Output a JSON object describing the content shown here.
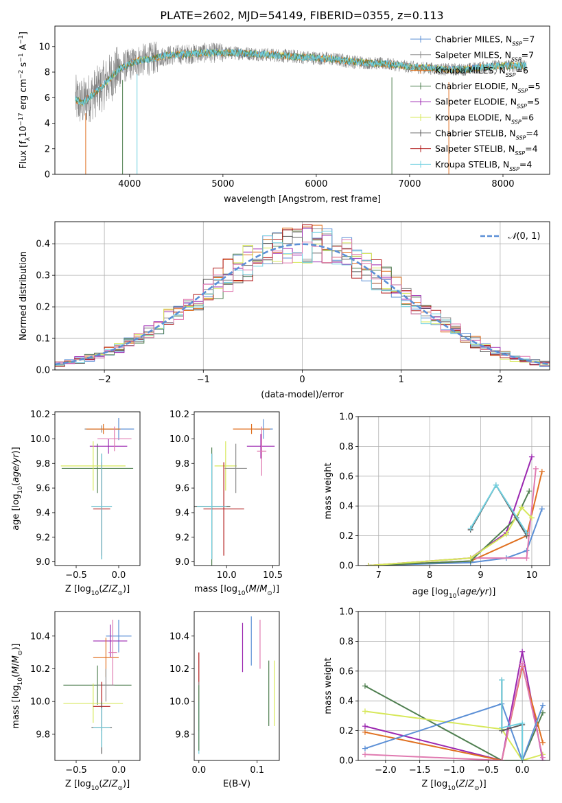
{
  "figure_title": "PLATE=2602, MJD=54149, FIBERID=0355, z=0.113",
  "colors": {
    "chabrier_miles": "#5b8fd6",
    "salpeter_miles": "#8c8c8c",
    "kroupa_miles": "#e07020",
    "chabrier_elodie": "#4f7f50",
    "salpeter_elodie": "#9b27b0",
    "kroupa_elodie": "#d7e85a",
    "chabrier_stelib": "#5a5a5a",
    "salpeter_stelib": "#b01818",
    "kroupa_stelib": "#70d0e0",
    "pink": "#e07ab0",
    "normal": "#5b8fd6"
  },
  "legend_spectrum": [
    {
      "name": "Chabrier MILES, N_SSP=7",
      "color": "#5b8fd6"
    },
    {
      "name": "Salpeter MILES, N_SSP=7",
      "color": "#8c8c8c"
    },
    {
      "name": "Kroupa MILES, N_SSP=6",
      "color": "#e07020"
    },
    {
      "name": "Chabrier ELODIE, N_SSP=5",
      "color": "#4f7f50"
    },
    {
      "name": "Salpeter ELODIE, N_SSP=5",
      "color": "#9b27b0"
    },
    {
      "name": "Kroupa ELODIE, N_SSP=6",
      "color": "#d7e85a"
    },
    {
      "name": "Chabrier STELIB, N_SSP=4",
      "color": "#5a5a5a"
    },
    {
      "name": "Salpeter STELIB, N_SSP=4",
      "color": "#b01818"
    },
    {
      "name": "Kroupa STELIB, N_SSP=4",
      "color": "#70d0e0"
    }
  ],
  "chart_data": [
    {
      "id": "spectrum",
      "type": "line",
      "xlabel": "wavelength [Angstrom, rest frame]",
      "ylabel": "Flux [f_λ 10^-17 erg cm^-2 s^-1 A^-1]",
      "xlim": [
        3200,
        8500
      ],
      "ylim": [
        0,
        11.6
      ],
      "xticks": [
        4000,
        5000,
        6000,
        7000,
        8000
      ],
      "yticks": [
        0,
        2,
        4,
        6,
        8,
        10
      ],
      "grid": false,
      "legend": "top-right",
      "continuum": {
        "x": [
          3400,
          3500,
          3600,
          3700,
          3800,
          3900,
          4000,
          4100,
          4200,
          4400,
          4600,
          4800,
          5000,
          5200,
          5400,
          5600,
          5800,
          6000,
          6200,
          6400,
          6600,
          6800,
          7000,
          7200,
          7400,
          7600,
          7800,
          8000,
          8250
        ],
        "y": [
          5.9,
          5.6,
          6.2,
          6.8,
          7.6,
          8.3,
          8.6,
          8.9,
          9.0,
          9.3,
          9.4,
          9.5,
          9.5,
          9.5,
          9.4,
          9.3,
          9.2,
          9.1,
          9.0,
          8.8,
          8.7,
          8.6,
          8.4,
          8.3,
          8.2,
          8.2,
          8.4,
          8.5,
          8.5
        ]
      }
    },
    {
      "id": "residuals",
      "type": "area",
      "xlabel": "(data-model)/error",
      "ylabel": "Normed distribution",
      "xlim": [
        -2.5,
        2.5
      ],
      "ylim": [
        0,
        0.47
      ],
      "xticks": [
        -2,
        -1,
        0,
        1,
        2
      ],
      "yticks": [
        0.0,
        0.1,
        0.2,
        0.3,
        0.4
      ],
      "grid": true,
      "legend": "top-right",
      "legend_label": "N(0,1)",
      "bin_width": 0.1
    },
    {
      "id": "age_vs_Z",
      "type": "scatter",
      "xlabel": "Z [log10(Z/Z☉)]",
      "ylabel": "age [log10(age/yr)]",
      "xlim": [
        -0.75,
        0.25
      ],
      "ylim": [
        8.97,
        10.22
      ],
      "xticks": [
        -0.5,
        0.0
      ],
      "yticks": [
        9.0,
        9.2,
        9.4,
        9.6,
        9.8,
        10.0,
        10.2
      ],
      "points": [
        {
          "color": "#5b8fd6",
          "x": 0.0,
          "y": 10.08,
          "xerr": 0.18,
          "yerr": 0.09
        },
        {
          "color": "#8c8c8c",
          "x": -0.2,
          "y": 10.08,
          "xerr": 0.2,
          "yerr": 0.03
        },
        {
          "color": "#e07020",
          "x": -0.18,
          "y": 10.08,
          "xerr": 0.2,
          "yerr": 0.04
        },
        {
          "color": "#4f7f50",
          "x": -0.25,
          "y": 9.76,
          "xerr": 0.42,
          "yerr": 0.2
        },
        {
          "color": "#9b27b0",
          "x": -0.12,
          "y": 9.94,
          "xerr": 0.22,
          "yerr": 0.06
        },
        {
          "color": "#d7e85a",
          "x": -0.3,
          "y": 9.78,
          "xerr": 0.38,
          "yerr": 0.2
        },
        {
          "color": "#5a5a5a",
          "x": -0.2,
          "y": 9.45,
          "xerr": 0.12,
          "yerr": 0.43
        },
        {
          "color": "#b01818",
          "x": -0.2,
          "y": 9.43,
          "xerr": 0.1,
          "yerr": 0.38
        },
        {
          "color": "#70d0e0",
          "x": -0.2,
          "y": 9.45,
          "xerr": 0.12,
          "yerr": 0.43
        },
        {
          "color": "#e07ab0",
          "x": -0.05,
          "y": 10.0,
          "xerr": 0.2,
          "yerr": 0.1
        }
      ]
    },
    {
      "id": "age_vs_mass",
      "type": "scatter",
      "xlabel": "mass [log10(M/M☉)]",
      "ylabel": "",
      "xlim": [
        9.65,
        10.57
      ],
      "ylim": [
        8.97,
        10.22
      ],
      "xticks": [
        10.0,
        10.5
      ],
      "yticks": [
        9.0,
        9.2,
        9.4,
        9.6,
        9.8,
        10.0,
        10.2
      ],
      "points": [
        {
          "color": "#5b8fd6",
          "x": 10.4,
          "y": 10.08,
          "xerr": 0.1,
          "yerr": 0.08
        },
        {
          "color": "#e07020",
          "x": 10.27,
          "y": 10.08,
          "xerr": 0.2,
          "yerr": 0.04
        },
        {
          "color": "#9b27b0",
          "x": 10.37,
          "y": 9.94,
          "xerr": 0.15,
          "yerr": 0.1
        },
        {
          "color": "#e07ab0",
          "x": 10.38,
          "y": 9.9,
          "xerr": 0.05,
          "yerr": 0.2
        },
        {
          "color": "#4f7f50",
          "x": 9.84,
          "y": 9.45,
          "xerr": 0.2,
          "yerr": 0.48
        },
        {
          "color": "#d7e85a",
          "x": 9.99,
          "y": 9.78,
          "xerr": 0.12,
          "yerr": 0.2
        },
        {
          "color": "#5a5a5a",
          "x": 9.84,
          "y": 9.45,
          "xerr": 0.2,
          "yerr": 0.43
        },
        {
          "color": "#b01818",
          "x": 9.97,
          "y": 9.43,
          "xerr": 0.22,
          "yerr": 0.38
        },
        {
          "color": "#70d0e0",
          "x": 9.84,
          "y": 9.45,
          "xerr": 0.16,
          "yerr": 0.43
        },
        {
          "color": "#8c8c8c",
          "x": 10.1,
          "y": 9.76,
          "xerr": 0.12,
          "yerr": 0.2
        }
      ]
    },
    {
      "id": "massweight_vs_age",
      "type": "line",
      "xlabel": "age [log10(age/yr)]",
      "ylabel": "mass weight",
      "xlim": [
        6.6,
        10.35
      ],
      "ylim": [
        0,
        1.0
      ],
      "xticks": [
        7,
        8,
        9,
        10
      ],
      "yticks": [
        0.0,
        0.2,
        0.4,
        0.6,
        0.8,
        1.0
      ],
      "grid": true,
      "series": [
        {
          "color": "#5b8fd6",
          "x": [
            6.8,
            8.8,
            9.5,
            9.9,
            10.2
          ],
          "y": [
            0.0,
            0.02,
            0.05,
            0.1,
            0.38
          ]
        },
        {
          "color": "#9b27b0",
          "x": [
            6.8,
            8.8,
            9.5,
            10.0
          ],
          "y": [
            0.0,
            0.05,
            0.22,
            0.73
          ]
        },
        {
          "color": "#e07020",
          "x": [
            6.8,
            8.8,
            9.9,
            10.2
          ],
          "y": [
            0.0,
            0.03,
            0.2,
            0.63
          ]
        },
        {
          "color": "#e07ab0",
          "x": [
            6.8,
            8.8,
            9.9,
            10.08
          ],
          "y": [
            0.0,
            0.05,
            0.05,
            0.65
          ]
        },
        {
          "color": "#4f7f50",
          "x": [
            6.8,
            8.8,
            9.7,
            9.95
          ],
          "y": [
            0.0,
            0.03,
            0.32,
            0.5
          ]
        },
        {
          "color": "#d7e85a",
          "x": [
            6.8,
            8.8,
            9.5,
            9.8,
            10.0
          ],
          "y": [
            0.0,
            0.05,
            0.21,
            0.39,
            0.32
          ]
        },
        {
          "color": "#5a5a5a",
          "x": [
            8.8,
            9.3,
            9.9
          ],
          "y": [
            0.24,
            0.54,
            0.2
          ]
        },
        {
          "color": "#70d0e0",
          "x": [
            8.8,
            9.3,
            9.9
          ],
          "y": [
            0.25,
            0.54,
            0.22
          ]
        }
      ]
    },
    {
      "id": "mass_vs_Z",
      "type": "scatter",
      "xlabel": "Z [log10(Z/Z☉)]",
      "ylabel": "mass [log10(M/M☉)]",
      "xlim": [
        -0.75,
        0.25
      ],
      "ylim": [
        9.64,
        10.55
      ],
      "xticks": [
        -0.5,
        0.0
      ],
      "yticks": [
        9.8,
        10.0,
        10.2,
        10.4
      ],
      "points": [
        {
          "color": "#5b8fd6",
          "x": 0.0,
          "y": 10.4,
          "xerr": 0.15,
          "yerr": 0.1
        },
        {
          "color": "#9b27b0",
          "x": -0.1,
          "y": 10.37,
          "xerr": 0.2,
          "yerr": 0.1
        },
        {
          "color": "#e07020",
          "x": -0.15,
          "y": 10.27,
          "xerr": 0.15,
          "yerr": 0.12
        },
        {
          "color": "#e07ab0",
          "x": -0.07,
          "y": 10.3,
          "xerr": 0.05,
          "yerr": 0.2
        },
        {
          "color": "#4f7f50",
          "x": -0.25,
          "y": 10.1,
          "xerr": 0.4,
          "yerr": 0.12
        },
        {
          "color": "#d7e85a",
          "x": -0.3,
          "y": 9.99,
          "xerr": 0.35,
          "yerr": 0.12
        },
        {
          "color": "#8c8c8c",
          "x": -0.15,
          "y": 10.1,
          "xerr": 0.1,
          "yerr": 0.1
        },
        {
          "color": "#b01818",
          "x": -0.2,
          "y": 9.97,
          "xerr": 0.1,
          "yerr": 0.15
        },
        {
          "color": "#5a5a5a",
          "x": -0.2,
          "y": 9.84,
          "xerr": 0.12,
          "yerr": 0.16
        },
        {
          "color": "#70d0e0",
          "x": -0.2,
          "y": 9.84,
          "xerr": 0.1,
          "yerr": 0.12
        }
      ]
    },
    {
      "id": "mass_vs_ebv",
      "type": "scatter",
      "xlabel": "E(B-V)",
      "ylabel": "",
      "xlim": [
        -0.008,
        0.138
      ],
      "ylim": [
        9.64,
        10.55
      ],
      "xticks": [
        0.0,
        0.1
      ],
      "yticks": [
        9.8,
        10.0,
        10.2,
        10.4
      ],
      "points": [
        {
          "color": "#b01818",
          "x": 0.0,
          "y": 10.2,
          "yerr": 0.1
        },
        {
          "color": "#8c8c8c",
          "x": 0.0,
          "y": 9.97,
          "yerr": 0.15
        },
        {
          "color": "#70d0e0",
          "x": 0.0,
          "y": 9.84,
          "yerr": 0.16
        },
        {
          "color": "#4f7f50",
          "x": 0.0,
          "y": 9.9,
          "yerr": 0.2
        },
        {
          "color": "#9b27b0",
          "x": 0.075,
          "y": 10.33,
          "yerr": 0.15
        },
        {
          "color": "#5b8fd6",
          "x": 0.09,
          "y": 10.37,
          "yerr": 0.15
        },
        {
          "color": "#e07ab0",
          "x": 0.105,
          "y": 10.35,
          "yerr": 0.15
        },
        {
          "color": "#4f7f50",
          "x": 0.12,
          "y": 10.05,
          "yerr": 0.2
        },
        {
          "color": "#d7e85a",
          "x": 0.13,
          "y": 10.05,
          "yerr": 0.2
        }
      ]
    },
    {
      "id": "massweight_vs_Z",
      "type": "line",
      "xlabel": "Z [log10(Z/Z☉)]",
      "ylabel": "mass weight",
      "xlim": [
        -2.4,
        0.4
      ],
      "ylim": [
        0,
        1.0
      ],
      "xticks": [
        -2.0,
        -1.5,
        -1.0,
        -0.5,
        0.0
      ],
      "yticks": [
        0.0,
        0.2,
        0.4,
        0.6,
        0.8,
        1.0
      ],
      "grid": true,
      "series": [
        {
          "color": "#4f7f50",
          "x": [
            -2.3,
            -0.3,
            0.0,
            0.3
          ],
          "y": [
            0.5,
            0.0,
            0.0,
            0.32
          ]
        },
        {
          "color": "#d7e85a",
          "x": [
            -2.3,
            -0.3,
            0.0,
            0.3
          ],
          "y": [
            0.33,
            0.21,
            0.0,
            0.04
          ]
        },
        {
          "color": "#9b27b0",
          "x": [
            -2.3,
            -0.3,
            0.0,
            0.3
          ],
          "y": [
            0.23,
            0.0,
            0.73,
            0.0
          ]
        },
        {
          "color": "#e07020",
          "x": [
            -2.3,
            -0.3,
            0.0,
            0.3
          ],
          "y": [
            0.19,
            0.0,
            0.63,
            0.12
          ]
        },
        {
          "color": "#e07ab0",
          "x": [
            -2.3,
            -0.3,
            0.0,
            0.3
          ],
          "y": [
            0.04,
            0.0,
            0.65,
            0.02
          ]
        },
        {
          "color": "#5b8fd6",
          "x": [
            -2.3,
            -0.3,
            0.0,
            0.3
          ],
          "y": [
            0.08,
            0.38,
            0.0,
            0.37
          ]
        },
        {
          "color": "#5a5a5a",
          "x": [
            -0.3,
            -0.3,
            0.0,
            0.0
          ],
          "y": [
            0.54,
            0.2,
            0.24,
            0.0
          ]
        },
        {
          "color": "#70d0e0",
          "x": [
            -0.3,
            -0.3,
            0.0,
            0.0
          ],
          "y": [
            0.54,
            0.22,
            0.25,
            0.0
          ]
        }
      ]
    }
  ]
}
